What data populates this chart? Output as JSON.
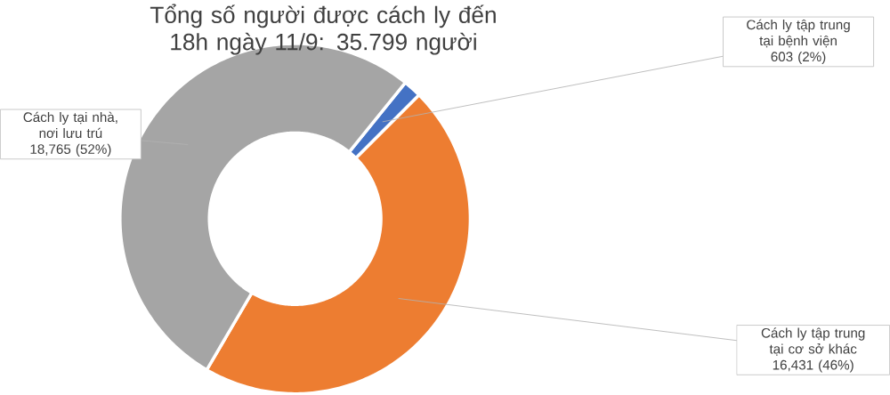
{
  "chart_data": {
    "type": "donut",
    "title": "Tổng số người được cách ly đến 18h ngày 11/9: 35.799 người",
    "categories": [
      "Cách ly tập trung tại bệnh viện",
      "Cách ly tập trung tại cơ sở khác",
      "Cách ly tại nhà, nơi lưu trú"
    ],
    "values": [
      603,
      16431,
      18765
    ],
    "colors": [
      "#4472c4",
      "#ed7d31",
      "#a5a5a5"
    ],
    "value_labels": [
      "603 (2%)",
      "16,431 (46%)",
      "18,765 (52%)"
    ]
  }
}
